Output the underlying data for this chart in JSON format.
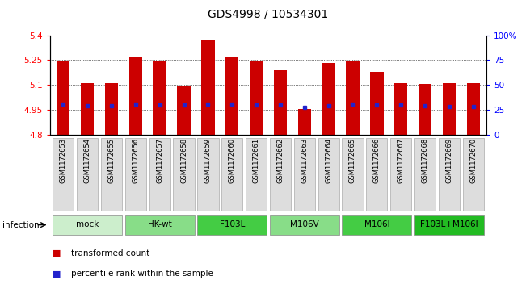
{
  "title": "GDS4998 / 10534301",
  "gsm_labels": [
    "GSM1172653",
    "GSM1172654",
    "GSM1172655",
    "GSM1172656",
    "GSM1172657",
    "GSM1172658",
    "GSM1172659",
    "GSM1172660",
    "GSM1172661",
    "GSM1172662",
    "GSM1172663",
    "GSM1172664",
    "GSM1172665",
    "GSM1172666",
    "GSM1172667",
    "GSM1172668",
    "GSM1172669",
    "GSM1172670"
  ],
  "bar_heights": [
    5.245,
    5.11,
    5.11,
    5.27,
    5.24,
    5.09,
    5.375,
    5.27,
    5.24,
    5.19,
    4.955,
    5.235,
    5.245,
    5.18,
    5.11,
    5.105,
    5.11,
    5.11
  ],
  "blue_marker_y": [
    4.985,
    4.975,
    4.975,
    4.985,
    4.98,
    4.982,
    4.987,
    4.985,
    4.982,
    4.982,
    4.965,
    4.975,
    4.985,
    4.982,
    4.982,
    4.975,
    4.972,
    4.972
  ],
  "ymin": 4.8,
  "ymax": 5.4,
  "yticks": [
    4.8,
    4.95,
    5.1,
    5.25,
    5.4
  ],
  "ytick_labels": [
    "4.8",
    "4.95",
    "5.1",
    "5.25",
    "5.4"
  ],
  "right_yticks": [
    0,
    25,
    50,
    75,
    100
  ],
  "right_ytick_labels": [
    "0",
    "25",
    "50",
    "75",
    "100%"
  ],
  "bar_color": "#cc0000",
  "blue_color": "#2222cc",
  "infection_groups": [
    {
      "label": "mock",
      "start": 0,
      "end": 2,
      "color": "#cceecc"
    },
    {
      "label": "HK-wt",
      "start": 3,
      "end": 5,
      "color": "#88dd88"
    },
    {
      "label": "F103L",
      "start": 6,
      "end": 8,
      "color": "#44cc44"
    },
    {
      "label": "M106V",
      "start": 9,
      "end": 11,
      "color": "#88dd88"
    },
    {
      "label": "M106I",
      "start": 12,
      "end": 14,
      "color": "#44cc44"
    },
    {
      "label": "F103L+M106I",
      "start": 15,
      "end": 17,
      "color": "#22bb22"
    }
  ],
  "infection_label": "infection",
  "legend_red": "transformed count",
  "legend_blue": "percentile rank within the sample",
  "tick_fontsize": 7.5,
  "title_fontsize": 10
}
